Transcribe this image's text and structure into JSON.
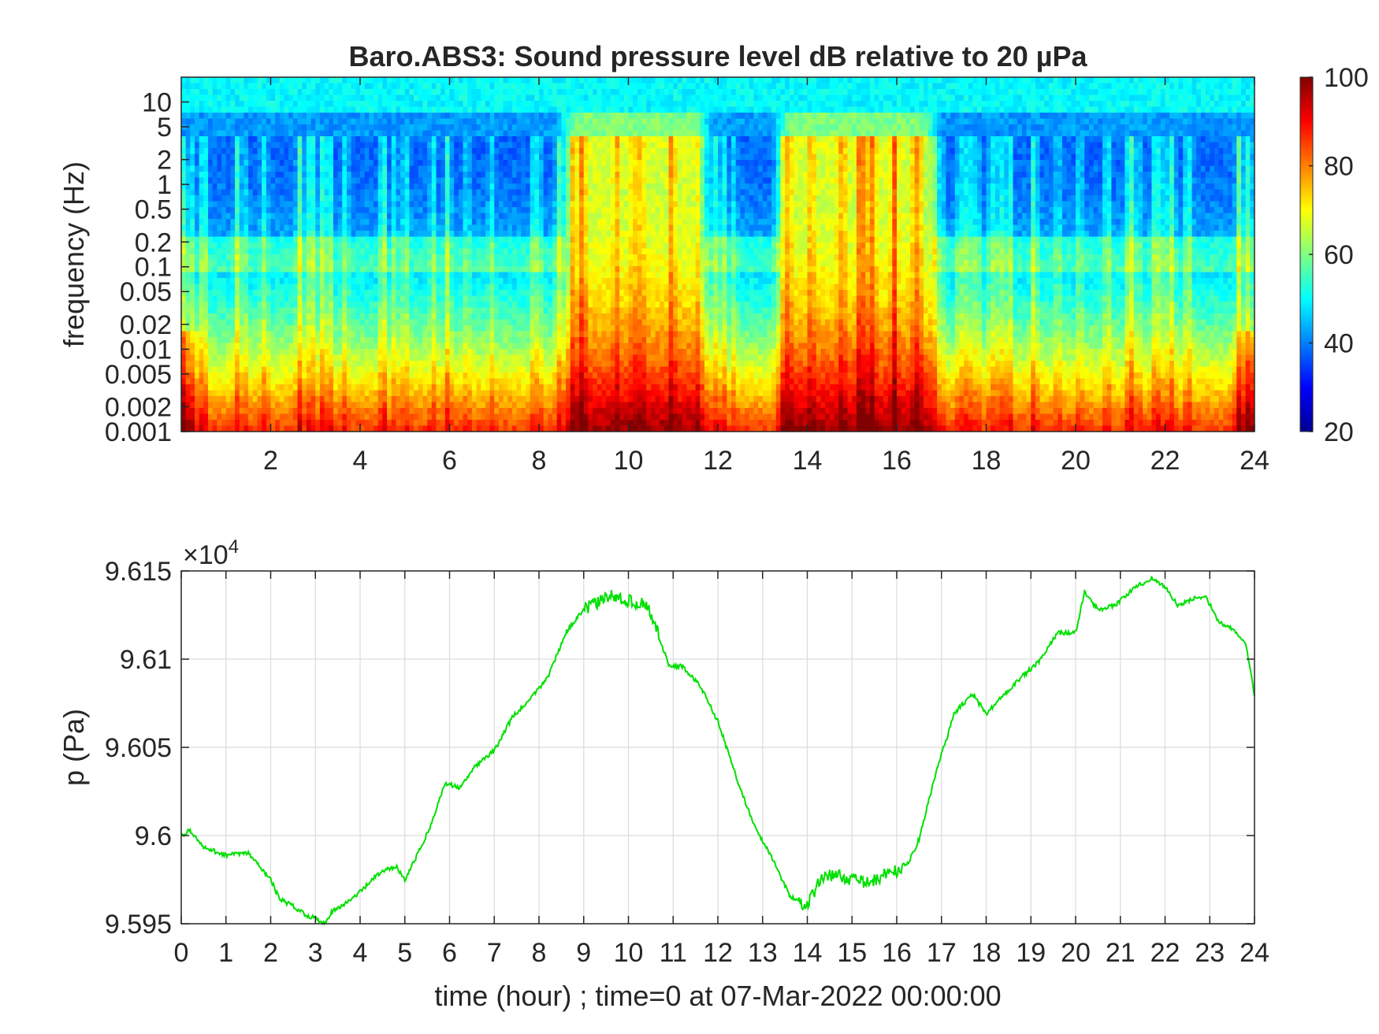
{
  "chart_data": [
    {
      "type": "heatmap",
      "title": "Baro.ABS3: Sound pressure level dB relative to 20 µPa",
      "xlabel": "",
      "ylabel": "frequency (Hz)",
      "x_ticks": [
        2,
        4,
        6,
        8,
        10,
        12,
        14,
        16,
        18,
        20,
        22,
        24
      ],
      "x_tick_labels": [
        "2",
        "4",
        "6",
        "8",
        "10",
        "12",
        "14",
        "16",
        "18",
        "20",
        "22",
        "24"
      ],
      "xlim": [
        0,
        24
      ],
      "y_scale": "log",
      "ylim": [
        0.001,
        20
      ],
      "y_ticks": [
        0.001,
        0.002,
        0.005,
        0.01,
        0.02,
        0.05,
        0.1,
        0.2,
        0.5,
        1,
        2,
        5,
        10
      ],
      "y_tick_labels": [
        "0.001",
        "0.002",
        "0.005",
        "0.01",
        "0.02",
        "0.05",
        "0.1",
        "0.2",
        "0.5",
        "1",
        "2",
        "5",
        "10"
      ],
      "colormap": "jet",
      "clim": [
        20,
        100
      ],
      "colorbar_ticks": [
        20,
        40,
        60,
        80,
        100
      ],
      "colorbar_tick_labels": [
        "20",
        "40",
        "60",
        "80",
        "100"
      ],
      "colorbar_placement": "right",
      "description_values": {
        "loud_hours": [
          [
            8.8,
            11.5
          ],
          [
            13.6,
            16.6
          ]
        ],
        "quiet_hours": [
          [
            0.5,
            5
          ],
          [
            17,
            23.5
          ]
        ],
        "low_freq_level_db": 88,
        "high_freq_level_db": 50
      }
    },
    {
      "type": "line",
      "title": "",
      "xlabel": "time (hour) ; time=0 at 07-Mar-2022 00:00:00",
      "ylabel": "p (Pa)",
      "xlim": [
        0,
        24
      ],
      "ylim": [
        95950,
        96150
      ],
      "x_ticks": [
        0,
        1,
        2,
        3,
        4,
        5,
        6,
        7,
        8,
        9,
        10,
        11,
        12,
        13,
        14,
        15,
        16,
        17,
        18,
        19,
        20,
        21,
        22,
        23,
        24
      ],
      "x_tick_labels": [
        "0",
        "1",
        "2",
        "3",
        "4",
        "5",
        "6",
        "7",
        "8",
        "9",
        "10",
        "11",
        "12",
        "13",
        "14",
        "15",
        "16",
        "17",
        "18",
        "19",
        "20",
        "21",
        "22",
        "23",
        "24"
      ],
      "y_ticks": [
        95950,
        96000,
        96050,
        96100,
        96150
      ],
      "y_tick_labels": [
        "9.595",
        "9.6",
        "9.605",
        "9.61",
        "9.615"
      ],
      "y_multiplier_base": "×10",
      "y_multiplier_exp": "4",
      "grid": true,
      "series": [
        {
          "color": "#00e000",
          "x": [
            0,
            0.2,
            0.5,
            1.0,
            1.5,
            2.0,
            2.2,
            2.5,
            2.8,
            3.0,
            3.2,
            3.4,
            3.6,
            4.0,
            4.4,
            4.8,
            5.0,
            5.3,
            5.6,
            5.9,
            6.2,
            6.6,
            7.0,
            7.4,
            7.8,
            8.2,
            8.6,
            9.0,
            9.3,
            9.6,
            10.0,
            10.4,
            10.6,
            10.9,
            11.2,
            11.6,
            12.0,
            12.4,
            12.8,
            13.2,
            13.6,
            14.0,
            14.3,
            14.6,
            15.0,
            15.4,
            15.8,
            16.2,
            16.5,
            16.9,
            17.3,
            17.7,
            18.0,
            18.4,
            18.8,
            19.2,
            19.6,
            20.0,
            20.2,
            20.5,
            20.9,
            21.3,
            21.7,
            22.0,
            22.3,
            22.6,
            22.9,
            23.2,
            23.5,
            23.8,
            24.0
          ],
          "y": [
            96000,
            96003,
            95993,
            95989,
            95990,
            95975,
            95964,
            95960,
            95955,
            95953,
            95950,
            95958,
            95960,
            95968,
            95978,
            95983,
            95975,
            95990,
            96007,
            96030,
            96027,
            96040,
            96048,
            96067,
            96077,
            96090,
            96115,
            96128,
            96132,
            96136,
            96133,
            96131,
            96120,
            96096,
            96096,
            96085,
            96065,
            96034,
            96006,
            95988,
            95966,
            95960,
            95976,
            95978,
            95975,
            95973,
            95979,
            95981,
            95998,
            96038,
            96070,
            96080,
            96069,
            96080,
            96090,
            96099,
            96115,
            96115,
            96138,
            96128,
            96131,
            96140,
            96146,
            96141,
            96130,
            96134,
            96136,
            96121,
            96117,
            96109,
            96080
          ]
        }
      ]
    }
  ]
}
